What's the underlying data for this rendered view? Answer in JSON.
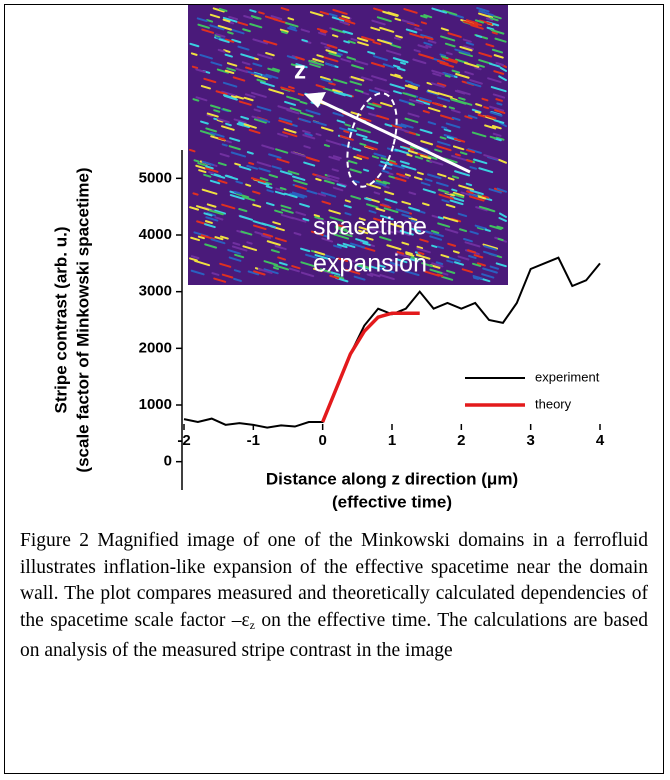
{
  "chart_data": {
    "type": "line",
    "ylabel_lines": [
      "Stripe contrast (arb. u.)",
      "(scale factor of Minkowski spacetime)"
    ],
    "xlabel_lines": [
      "Distance along z direction (μm)",
      "(effective time)"
    ],
    "xlim": [
      -2,
      4
    ],
    "xticks": [
      -2,
      -1,
      0,
      1,
      2,
      3,
      4
    ],
    "ylim": [
      -500,
      5500
    ],
    "yticks": [
      0,
      1000,
      2000,
      3000,
      4000,
      5000
    ],
    "series": [
      {
        "name": "experiment",
        "color": "#000000",
        "x": [
          -2,
          -1.8,
          -1.6,
          -1.4,
          -1.2,
          -1,
          -0.8,
          -0.6,
          -0.4,
          -0.2,
          0,
          0.2,
          0.4,
          0.6,
          0.8,
          1,
          1.2,
          1.4,
          1.6,
          1.8,
          2,
          2.2,
          2.4,
          2.6,
          2.8,
          3,
          3.2,
          3.4,
          3.6,
          3.8,
          4
        ],
        "values": [
          750,
          700,
          760,
          650,
          680,
          650,
          600,
          640,
          620,
          700,
          700,
          1300,
          1900,
          2400,
          2700,
          2600,
          2700,
          3000,
          2700,
          2800,
          2700,
          2800,
          2500,
          2450,
          2800,
          3400,
          3500,
          3600,
          3100,
          3200,
          3500
        ]
      },
      {
        "name": "theory",
        "color": "#e31a1c",
        "x": [
          0,
          0.2,
          0.4,
          0.6,
          0.8,
          1,
          1.2,
          1.4
        ],
        "values": [
          700,
          1300,
          1900,
          2300,
          2550,
          2620,
          2620,
          2620
        ]
      }
    ],
    "inset_labels": [
      "z",
      "spacetime",
      "expansion"
    ]
  },
  "caption": [
    "Figure 2 Magnified image of one of the Minkowski domains in a ferrofluid illustrates inflation-like expansion of the effective spacetime near the domain wall. The plot compares  measured and theoretically calculated dependencies of the spacetime scale factor –ε",
    "z",
    " on the effective time. The calculations are based on analysis of the measured stripe contrast in the image"
  ]
}
